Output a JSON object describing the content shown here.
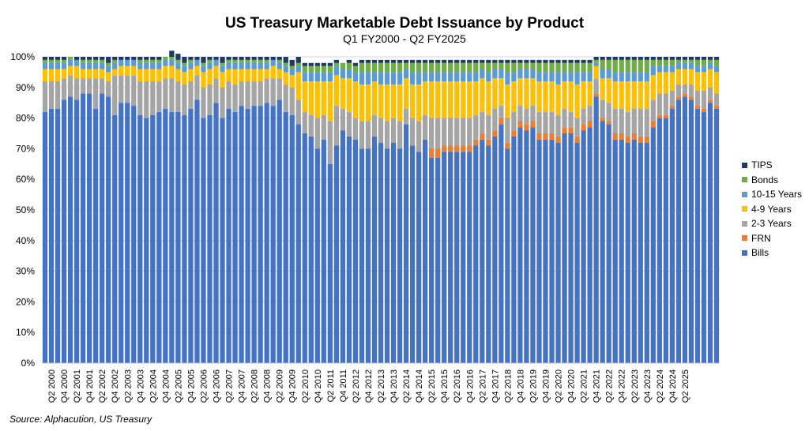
{
  "chart_data": {
    "type": "stacked-bar",
    "title": "US Treasury Marketable Debt Issuance by Product",
    "subtitle": "Q1 FY2000 - Q2 FY2025",
    "source": "Source: Alphacution, US Treasury",
    "ylim": [
      0,
      100
    ],
    "yticks": [
      "0%",
      "10%",
      "20%",
      "30%",
      "40%",
      "50%",
      "60%",
      "70%",
      "80%",
      "90%",
      "100%"
    ],
    "xtick_labels": [
      "Q2 2000",
      "Q4 2000",
      "Q2 2001",
      "Q4 2001",
      "Q2 2002",
      "Q4 2002",
      "Q2 2003",
      "Q4 2003",
      "Q2 2004",
      "Q4 2004",
      "Q2 2005",
      "Q4 2005",
      "Q2 2006",
      "Q4 2006",
      "Q2 2007",
      "Q4 2007",
      "Q2 2008",
      "Q4 2008",
      "Q2 2009",
      "Q4 2009",
      "Q2 2010",
      "Q4 2010",
      "Q2 2011",
      "Q4 2011",
      "Q2 2012",
      "Q4 2012",
      "Q2 2013",
      "Q4 2013",
      "Q2 2014",
      "Q4 2014",
      "Q2 2015",
      "Q4 2015",
      "Q2 2016",
      "Q4 2016",
      "Q2 2017",
      "Q4 2017",
      "Q2 2018",
      "Q4 2018",
      "Q2 2019",
      "Q4 2019",
      "Q2 2020",
      "Q4 2020",
      "Q2 2021",
      "Q4 2021",
      "Q2 2022",
      "Q4 2022",
      "Q2 2023",
      "Q4 2023",
      "Q2 2024",
      "Q4 2024",
      "Q2 2025"
    ],
    "legend": [
      {
        "name": "TIPS",
        "color": "#1f3864"
      },
      {
        "name": "Bonds",
        "color": "#70ad47"
      },
      {
        "name": "10-15 Years",
        "color": "#5b9bd5"
      },
      {
        "name": "4-9 Years",
        "color": "#ffc000"
      },
      {
        "name": "2-3 Years",
        "color": "#a5a5a5"
      },
      {
        "name": "FRN",
        "color": "#ed7d31"
      },
      {
        "name": "Bills",
        "color": "#4472c4"
      }
    ],
    "series": [
      {
        "name": "Bills",
        "values": [
          82,
          83,
          83,
          86,
          87,
          86,
          88,
          88,
          83,
          88,
          87,
          81,
          85,
          85,
          84,
          81,
          80,
          81,
          82,
          83,
          82,
          82,
          81,
          83,
          86,
          80,
          81,
          85,
          80,
          83,
          82,
          84,
          83,
          84,
          84,
          85,
          84,
          86,
          82,
          81,
          78,
          75,
          74,
          70,
          73,
          65,
          71,
          76,
          74,
          73,
          70,
          70,
          74,
          72,
          70,
          72,
          70,
          78,
          71,
          69,
          73,
          67,
          67,
          69,
          69,
          69,
          69,
          69,
          71,
          73,
          71,
          74,
          78,
          70,
          74,
          77,
          76,
          77,
          73,
          73,
          73,
          72,
          75,
          75,
          72,
          76,
          77,
          87,
          79,
          78,
          73,
          73,
          72,
          73,
          72,
          72,
          77,
          80,
          80,
          83,
          86,
          87,
          86,
          83,
          82,
          85,
          83
        ]
      },
      {
        "name": "FRN",
        "values": [
          0,
          0,
          0,
          0,
          0,
          0,
          0,
          0,
          0,
          0,
          0,
          0,
          0,
          0,
          0,
          0,
          0,
          0,
          0,
          0,
          0,
          0,
          0,
          0,
          0,
          0,
          0,
          0,
          0,
          0,
          0,
          0,
          0,
          0,
          0,
          0,
          0,
          0,
          0,
          0,
          0,
          0,
          0,
          0,
          0,
          0,
          0,
          0,
          0,
          0,
          0,
          0,
          0,
          0,
          0,
          0,
          0,
          0,
          0,
          0,
          0,
          3,
          3,
          2,
          2,
          2,
          2,
          2,
          2,
          2,
          2,
          2,
          2,
          2,
          2,
          2,
          2,
          2,
          2,
          2,
          2,
          2,
          2,
          2,
          2,
          2,
          2,
          1,
          1,
          1,
          2,
          2,
          2,
          2,
          2,
          2,
          2,
          1,
          1,
          1,
          1,
          1,
          1,
          1,
          1,
          1,
          1
        ]
      },
      {
        "name": "2-3 Years",
        "values": [
          10,
          9,
          9,
          7,
          7,
          7,
          5,
          5,
          10,
          5,
          5,
          13,
          9,
          9,
          10,
          11,
          12,
          11,
          10,
          10,
          11,
          10,
          10,
          9,
          8,
          10,
          10,
          8,
          10,
          9,
          9,
          8,
          9,
          8,
          8,
          8,
          9,
          7,
          9,
          9,
          8,
          7,
          7,
          10,
          8,
          14,
          13,
          7,
          8,
          7,
          9,
          9,
          7,
          8,
          9,
          8,
          9,
          5,
          9,
          10,
          8,
          10,
          10,
          9,
          9,
          9,
          9,
          9,
          8,
          7,
          8,
          7,
          4,
          8,
          6,
          5,
          5,
          5,
          7,
          7,
          7,
          7,
          6,
          5,
          6,
          5,
          5,
          5,
          6,
          6,
          8,
          8,
          8,
          8,
          9,
          9,
          7,
          7,
          7,
          5,
          4,
          3,
          4,
          5,
          6,
          4,
          4
        ]
      },
      {
        "name": "4-9 Years",
        "values": [
          4,
          4,
          4,
          3,
          3,
          4,
          3,
          3,
          3,
          3,
          3,
          2,
          3,
          3,
          3,
          4,
          4,
          4,
          4,
          4,
          4,
          4,
          4,
          4,
          3,
          5,
          5,
          4,
          5,
          4,
          5,
          4,
          4,
          4,
          4,
          3,
          4,
          3,
          4,
          4,
          9,
          10,
          11,
          12,
          11,
          13,
          10,
          10,
          11,
          12,
          12,
          12,
          11,
          11,
          12,
          11,
          12,
          10,
          11,
          12,
          11,
          12,
          12,
          12,
          12,
          12,
          12,
          12,
          11,
          11,
          11,
          10,
          9,
          11,
          10,
          9,
          10,
          9,
          10,
          10,
          10,
          10,
          9,
          10,
          11,
          9,
          8,
          4,
          7,
          8,
          9,
          9,
          10,
          9,
          9,
          9,
          8,
          7,
          7,
          6,
          5,
          5,
          5,
          6,
          6,
          6,
          7
        ]
      },
      {
        "name": "10-15 Years",
        "values": [
          2,
          2,
          2,
          2,
          2,
          2,
          2,
          2,
          2,
          2,
          2,
          2,
          2,
          2,
          2,
          2,
          2,
          2,
          2,
          2,
          2,
          2,
          2,
          2,
          2,
          2,
          2,
          2,
          2,
          2,
          2,
          2,
          2,
          2,
          2,
          2,
          2,
          2,
          2,
          2,
          2,
          3,
          3,
          3,
          3,
          3,
          3,
          3,
          3,
          3,
          4,
          4,
          3,
          4,
          4,
          4,
          4,
          3,
          4,
          4,
          3,
          3,
          3,
          3,
          3,
          3,
          3,
          3,
          3,
          3,
          3,
          3,
          3,
          4,
          3,
          3,
          3,
          3,
          3,
          3,
          3,
          4,
          3,
          3,
          4,
          3,
          3,
          1,
          3,
          3,
          3,
          3,
          3,
          3,
          3,
          3,
          3,
          2,
          2,
          2,
          2,
          2,
          2,
          2,
          2,
          2,
          2
        ]
      },
      {
        "name": "Bonds",
        "values": [
          1,
          1,
          1,
          1,
          1,
          0,
          1,
          1,
          1,
          1,
          1,
          1,
          0,
          0,
          0,
          1,
          1,
          1,
          1,
          1,
          1,
          1,
          1,
          1,
          0,
          1,
          1,
          0,
          1,
          1,
          1,
          1,
          1,
          1,
          1,
          1,
          0,
          1,
          1,
          1,
          1,
          2,
          2,
          2,
          2,
          2,
          1,
          2,
          2,
          2,
          3,
          3,
          3,
          3,
          3,
          3,
          3,
          2,
          3,
          3,
          3,
          3,
          3,
          3,
          3,
          3,
          3,
          3,
          3,
          2,
          3,
          2,
          2,
          3,
          3,
          2,
          2,
          2,
          3,
          3,
          3,
          3,
          3,
          3,
          3,
          3,
          3,
          1,
          3,
          3,
          4,
          4,
          4,
          4,
          4,
          4,
          2,
          2,
          2,
          2,
          1,
          1,
          1,
          2,
          2,
          1,
          2
        ]
      },
      {
        "name": "TIPS",
        "values": [
          1,
          1,
          1,
          1,
          0,
          1,
          1,
          1,
          1,
          1,
          2,
          1,
          1,
          1,
          1,
          1,
          1,
          1,
          1,
          0,
          2,
          2,
          2,
          1,
          1,
          2,
          1,
          1,
          2,
          1,
          1,
          1,
          1,
          1,
          1,
          1,
          1,
          1,
          2,
          2,
          2,
          1,
          1,
          1,
          1,
          1,
          1,
          0,
          1,
          1,
          1,
          1,
          1,
          1,
          1,
          1,
          1,
          1,
          1,
          1,
          1,
          1,
          1,
          1,
          1,
          1,
          1,
          1,
          1,
          1,
          1,
          1,
          1,
          1,
          1,
          1,
          1,
          1,
          1,
          1,
          1,
          1,
          1,
          1,
          1,
          1,
          1,
          1,
          1,
          1,
          1,
          1,
          1,
          1,
          1,
          1,
          1,
          1,
          1,
          1,
          1,
          1,
          1,
          1,
          1,
          1,
          1
        ]
      }
    ]
  }
}
